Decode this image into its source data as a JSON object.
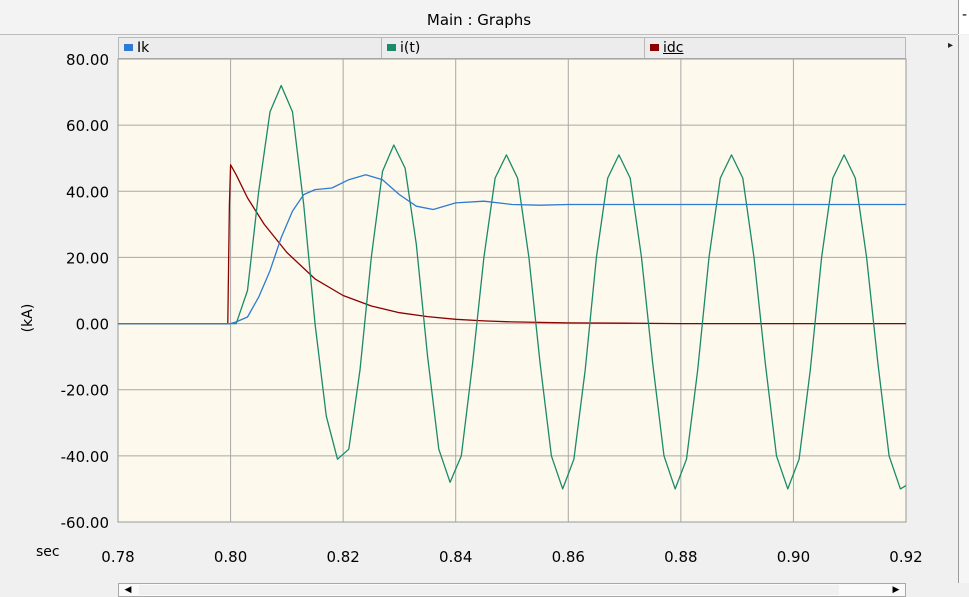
{
  "window": {
    "title": "Main : Graphs"
  },
  "legend": [
    {
      "name": "Ik",
      "color": "#2e7bd1"
    },
    {
      "name": "i(t)",
      "color": "#1a8a6a"
    },
    {
      "name": "idc",
      "color": "#8b0000"
    }
  ],
  "colors": {
    "plot_bg": "#fdf9ec",
    "grid": "#a8a8a8"
  },
  "chart_data": {
    "type": "line",
    "ylabel": "(kA)",
    "xlabel": "sec",
    "xlim": [
      0.78,
      0.92
    ],
    "ylim": [
      -60,
      80
    ],
    "x_ticks": [
      "0.78",
      "0.80",
      "0.82",
      "0.84",
      "0.86",
      "0.88",
      "0.90",
      "0.92"
    ],
    "y_ticks": [
      "80.00",
      "60.00",
      "40.00",
      "20.00",
      "0.00",
      "-20.00",
      "-40.00",
      "-60.00"
    ],
    "grid": true,
    "legend_position": "top",
    "series": [
      {
        "name": "Ik",
        "color": "#2e7bd1",
        "x": [
          0.78,
          0.8,
          0.801,
          0.803,
          0.805,
          0.807,
          0.809,
          0.811,
          0.813,
          0.815,
          0.818,
          0.821,
          0.824,
          0.827,
          0.83,
          0.833,
          0.836,
          0.84,
          0.845,
          0.85,
          0.855,
          0.86,
          0.87,
          0.88,
          0.89,
          0.9,
          0.91,
          0.92
        ],
        "y": [
          0,
          0,
          0.5,
          2,
          8,
          16,
          26,
          34,
          39,
          40.5,
          41,
          43.5,
          45,
          43.5,
          39,
          35.5,
          34.5,
          36.5,
          37,
          36,
          35.8,
          36,
          36,
          36,
          36,
          36,
          36,
          36
        ]
      },
      {
        "name": "i(t)",
        "color": "#1a8a6a",
        "x": [
          0.78,
          0.8,
          0.801,
          0.803,
          0.805,
          0.807,
          0.809,
          0.811,
          0.813,
          0.815,
          0.817,
          0.819,
          0.821,
          0.823,
          0.825,
          0.827,
          0.829,
          0.831,
          0.833,
          0.835,
          0.837,
          0.839,
          0.841,
          0.843,
          0.845,
          0.847,
          0.849,
          0.851,
          0.853,
          0.855,
          0.857,
          0.859,
          0.861,
          0.863,
          0.865,
          0.867,
          0.869,
          0.871,
          0.873,
          0.875,
          0.877,
          0.879,
          0.881,
          0.883,
          0.885,
          0.887,
          0.889,
          0.891,
          0.893,
          0.895,
          0.897,
          0.899,
          0.901,
          0.903,
          0.905,
          0.907,
          0.909,
          0.911,
          0.913,
          0.915,
          0.917,
          0.919,
          0.92
        ],
        "y": [
          0,
          0,
          0,
          10,
          40,
          64,
          72,
          64,
          36,
          0,
          -28,
          -41,
          -38,
          -14,
          20,
          46,
          54,
          47,
          24,
          -10,
          -38,
          -48,
          -40,
          -12,
          20,
          44,
          51,
          44,
          20,
          -12,
          -40,
          -50,
          -41,
          -14,
          20,
          44,
          51,
          44,
          20,
          -12,
          -40,
          -50,
          -41,
          -14,
          20,
          44,
          51,
          44,
          20,
          -12,
          -40,
          -50,
          -41,
          -14,
          20,
          44,
          51,
          44,
          20,
          -12,
          -40,
          -50,
          -49
        ]
      },
      {
        "name": "idc",
        "color": "#8b0000",
        "x": [
          0.78,
          0.7995,
          0.7998,
          0.8,
          0.801,
          0.803,
          0.806,
          0.81,
          0.815,
          0.82,
          0.825,
          0.83,
          0.835,
          0.84,
          0.845,
          0.85,
          0.86,
          0.87,
          0.88,
          0.89,
          0.9,
          0.91,
          0.92
        ],
        "y": [
          0,
          0,
          36,
          48,
          45,
          38,
          30,
          21.5,
          13.5,
          8.5,
          5.3,
          3.3,
          2.1,
          1.3,
          0.8,
          0.5,
          0.2,
          0.1,
          0,
          0,
          0,
          0,
          0
        ]
      }
    ]
  }
}
